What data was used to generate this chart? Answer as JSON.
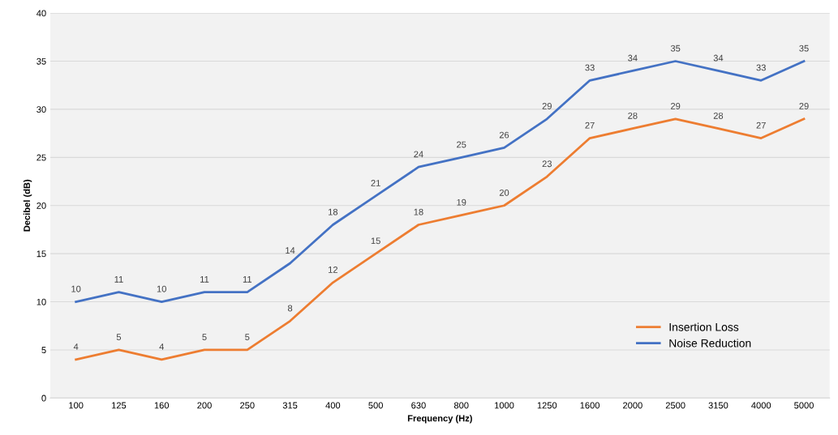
{
  "chart_data": {
    "type": "line",
    "xlabel": "Frequency (Hz)",
    "ylabel": "Decibel (dB)",
    "categories": [
      "100",
      "125",
      "160",
      "200",
      "250",
      "315",
      "400",
      "500",
      "630",
      "800",
      "1000",
      "1250",
      "1600",
      "2000",
      "2500",
      "3150",
      "4000",
      "5000"
    ],
    "series": [
      {
        "name": "Insertion Loss",
        "color": "#ed7d31",
        "values": [
          4,
          5,
          4,
          5,
          5,
          8,
          12,
          15,
          18,
          19,
          20,
          23,
          27,
          28,
          29,
          28,
          27,
          29
        ]
      },
      {
        "name": "Noise Reduction",
        "color": "#4472c4",
        "values": [
          10,
          11,
          10,
          11,
          11,
          14,
          18,
          21,
          24,
          25,
          26,
          29,
          33,
          34,
          35,
          34,
          33,
          35
        ]
      }
    ],
    "ylim": [
      0,
      40
    ],
    "yticks": [
      0,
      5,
      10,
      15,
      20,
      25,
      30,
      35,
      40
    ],
    "grid": "y",
    "legend": "bottom right",
    "data_labels": true,
    "marker": "none",
    "line_style": "solid"
  }
}
